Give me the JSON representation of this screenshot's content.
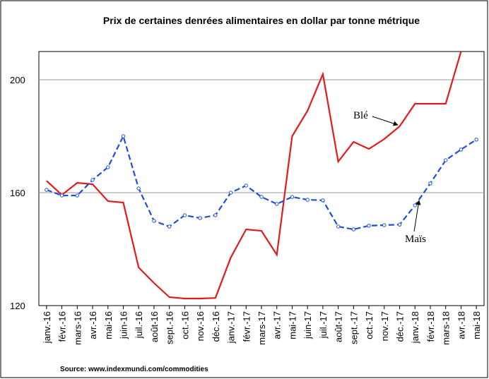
{
  "chart_data": {
    "type": "line",
    "title": "Prix de certaines denrées alimentaires en dollar par tonne métrique",
    "source": "Source: www.indexmundi.com/commodities",
    "categories": [
      "janv.-16",
      "févr.-16",
      "mars-16",
      "avr.-16",
      "mai-16",
      "juin-16",
      "juil.-16",
      "août-16",
      "sept.-16",
      "oct.-16",
      "nov.-16",
      "déc.-16",
      "janv.-17",
      "févr.-17",
      "mars-17",
      "avr.-17",
      "mai-17",
      "juin-17",
      "juil.-17",
      "août-17",
      "sept.-17",
      "oct.-17",
      "nov.-17",
      "déc.-17",
      "janv.-18",
      "févr.-18",
      "mars-18",
      "avr.-18",
      "mai-18"
    ],
    "series": [
      {
        "name": "Blé",
        "color": "#e31a1c",
        "dashed": false,
        "markers": false,
        "values": [
          164.2,
          159.2,
          163.5,
          163,
          157,
          156.5,
          133.5,
          128,
          123,
          122.5,
          122.5,
          122.7,
          137,
          147,
          146.5,
          138,
          180,
          189,
          202,
          171,
          178,
          175.5,
          179,
          183.5,
          191.5,
          191.5,
          191.5,
          210,
          null
        ]
      },
      {
        "name": "Maïs",
        "color": "#1f4fd6",
        "dashed": true,
        "markers": true,
        "values": [
          161,
          159,
          159,
          164.5,
          169,
          180,
          161.5,
          150,
          148,
          152,
          151,
          152,
          160,
          162.5,
          158.5,
          156,
          158.5,
          157.5,
          157.3,
          148,
          147,
          148.3,
          148.5,
          148.7,
          155.5,
          163.3,
          171.5,
          175.3,
          178.8
        ]
      }
    ],
    "ylim": [
      120,
      210
    ],
    "yticks": [
      120,
      160,
      200
    ],
    "grid": true
  }
}
